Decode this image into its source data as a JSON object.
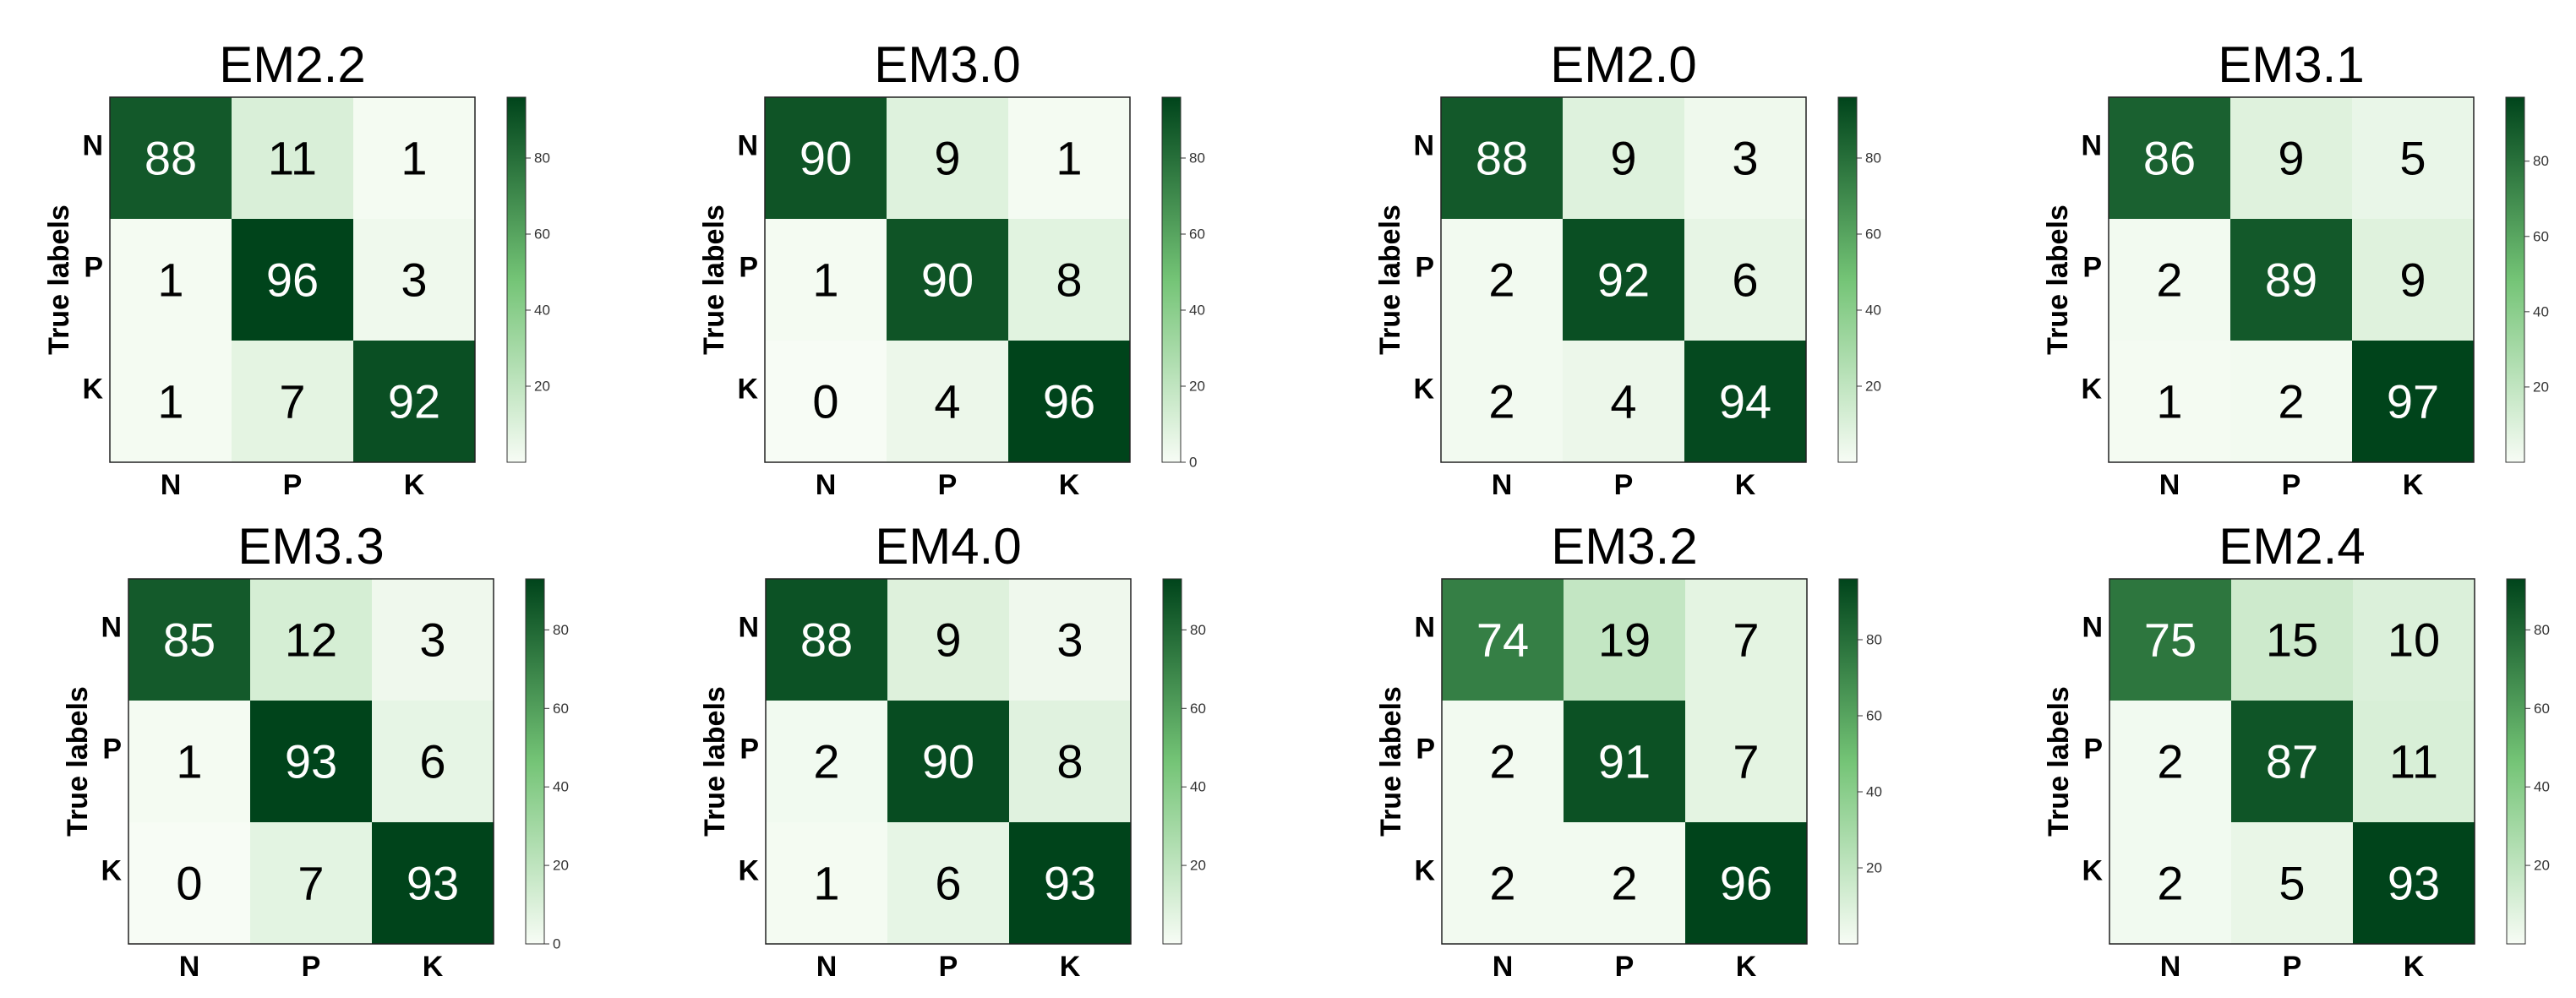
{
  "chart_data": [
    {
      "type": "heatmap",
      "title": "EM2.2",
      "ylabel": "True labels",
      "x_categories": [
        "N",
        "P",
        "K"
      ],
      "y_categories": [
        "N",
        "P",
        "K"
      ],
      "values": [
        [
          88,
          11,
          1
        ],
        [
          1,
          96,
          3
        ],
        [
          1,
          7,
          92
        ]
      ],
      "colorbar_ticks": [
        20,
        40,
        60,
        80
      ],
      "colorbar_range": [
        0,
        96
      ]
    },
    {
      "type": "heatmap",
      "title": "EM3.0",
      "ylabel": "True labels",
      "x_categories": [
        "N",
        "P",
        "K"
      ],
      "y_categories": [
        "N",
        "P",
        "K"
      ],
      "values": [
        [
          90,
          9,
          1
        ],
        [
          1,
          90,
          8
        ],
        [
          0,
          4,
          96
        ]
      ],
      "colorbar_ticks": [
        0,
        20,
        40,
        60,
        80
      ],
      "colorbar_range": [
        0,
        96
      ]
    },
    {
      "type": "heatmap",
      "title": "EM2.0",
      "ylabel": "True labels",
      "x_categories": [
        "N",
        "P",
        "K"
      ],
      "y_categories": [
        "N",
        "P",
        "K"
      ],
      "values": [
        [
          88,
          9,
          3
        ],
        [
          2,
          92,
          6
        ],
        [
          2,
          4,
          94
        ]
      ],
      "colorbar_ticks": [
        20,
        40,
        60,
        80
      ],
      "colorbar_range": [
        0,
        96
      ]
    },
    {
      "type": "heatmap",
      "title": "EM3.1",
      "ylabel": "True labels",
      "x_categories": [
        "N",
        "P",
        "K"
      ],
      "y_categories": [
        "N",
        "P",
        "K"
      ],
      "values": [
        [
          86,
          9,
          5
        ],
        [
          2,
          89,
          9
        ],
        [
          1,
          2,
          97
        ]
      ],
      "colorbar_ticks": [
        20,
        40,
        60,
        80
      ],
      "colorbar_range": [
        0,
        97
      ]
    },
    {
      "type": "heatmap",
      "title": "EM3.3",
      "ylabel": "True labels",
      "x_categories": [
        "N",
        "P",
        "K"
      ],
      "y_categories": [
        "N",
        "P",
        "K"
      ],
      "values": [
        [
          85,
          12,
          3
        ],
        [
          1,
          93,
          6
        ],
        [
          0,
          7,
          93
        ]
      ],
      "colorbar_ticks": [
        0,
        20,
        40,
        60,
        80
      ],
      "colorbar_range": [
        0,
        93
      ]
    },
    {
      "type": "heatmap",
      "title": "EM4.0",
      "ylabel": "True labels",
      "x_categories": [
        "N",
        "P",
        "K"
      ],
      "y_categories": [
        "N",
        "P",
        "K"
      ],
      "values": [
        [
          88,
          9,
          3
        ],
        [
          2,
          90,
          8
        ],
        [
          1,
          6,
          93
        ]
      ],
      "colorbar_ticks": [
        20,
        40,
        60,
        80
      ],
      "colorbar_range": [
        0,
        93
      ]
    },
    {
      "type": "heatmap",
      "title": "EM3.2",
      "ylabel": "True labels",
      "x_categories": [
        "N",
        "P",
        "K"
      ],
      "y_categories": [
        "N",
        "P",
        "K"
      ],
      "values": [
        [
          74,
          19,
          7
        ],
        [
          2,
          91,
          7
        ],
        [
          2,
          2,
          96
        ]
      ],
      "colorbar_ticks": [
        20,
        40,
        60,
        80
      ],
      "colorbar_range": [
        0,
        96
      ]
    },
    {
      "type": "heatmap",
      "title": "EM2.4",
      "ylabel": "True labels",
      "x_categories": [
        "N",
        "P",
        "K"
      ],
      "y_categories": [
        "N",
        "P",
        "K"
      ],
      "values": [
        [
          75,
          15,
          10
        ],
        [
          2,
          87,
          11
        ],
        [
          2,
          5,
          93
        ]
      ],
      "colorbar_ticks": [
        20,
        40,
        60,
        80
      ],
      "colorbar_range": [
        0,
        93
      ]
    }
  ],
  "colors": {
    "low": "#f7fcf5",
    "mid": "#74c476",
    "high": "#00441b",
    "text_dark": "#000000",
    "text_light": "#ffffff"
  }
}
